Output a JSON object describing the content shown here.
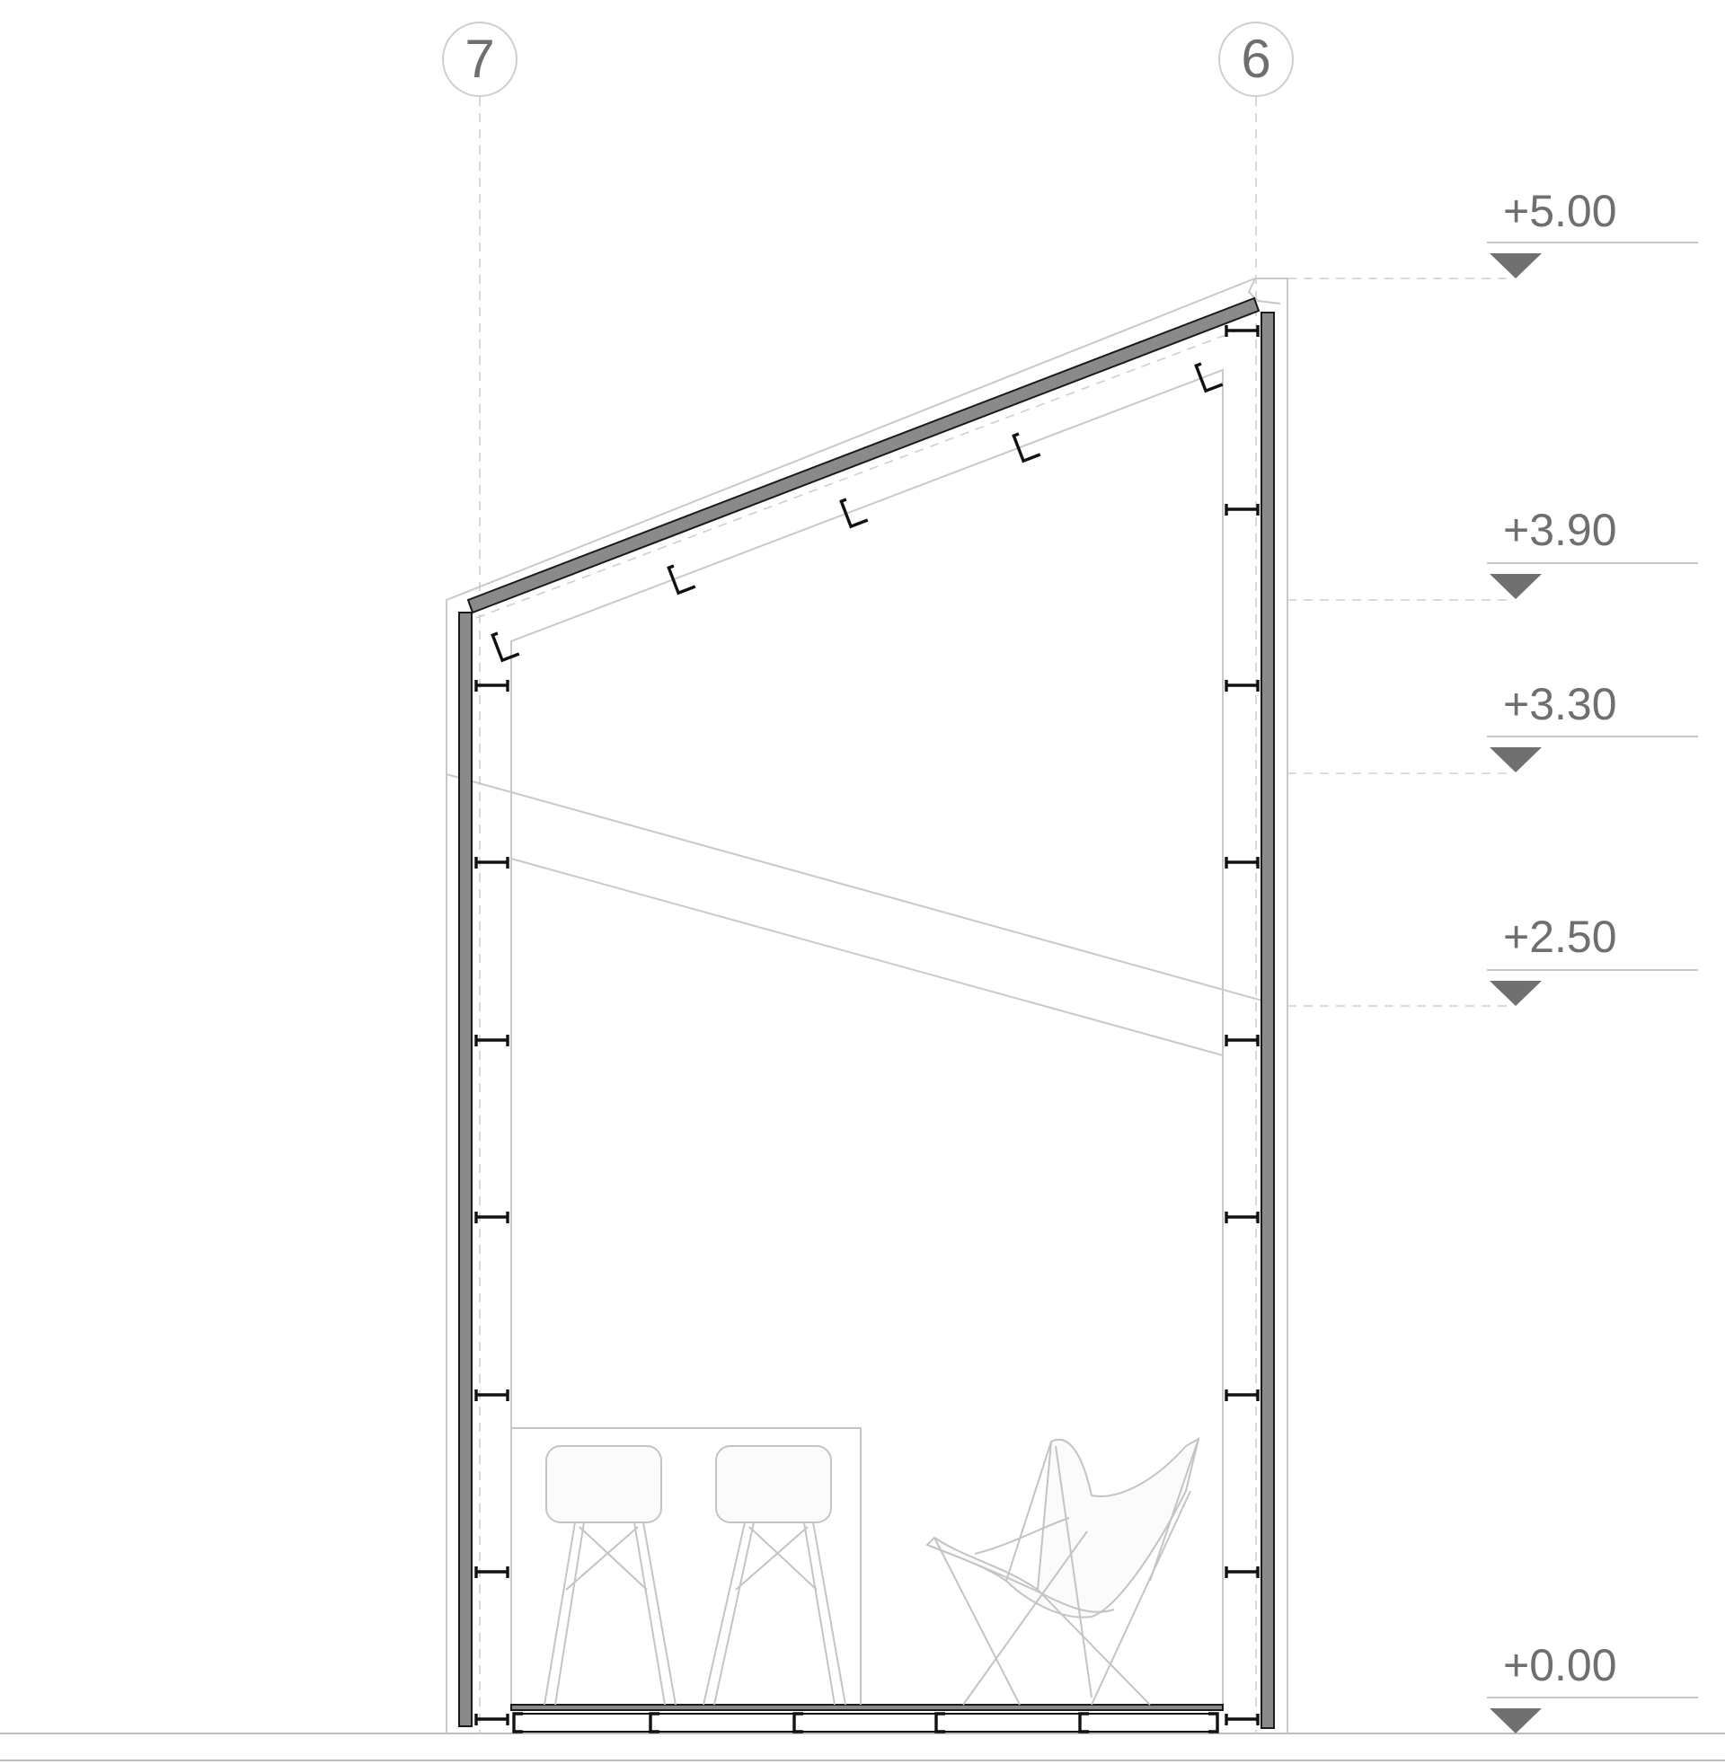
{
  "grid_axes": [
    {
      "id": "7"
    },
    {
      "id": "6"
    }
  ],
  "levels": [
    {
      "label": "+5.00"
    },
    {
      "label": "+3.90"
    },
    {
      "label": "+3.30"
    },
    {
      "label": "+2.50"
    },
    {
      "label": "+0.00"
    }
  ],
  "colors": {
    "wall_fill": "#8a8a8a",
    "steel_profile": "#111111",
    "thin_line": "#c9c9c9",
    "label_text": "#6f6f6f",
    "level_marker": "#707070"
  },
  "icons": {
    "level_marker": "triangle-down-icon",
    "grid_bubble": "circle-icon"
  }
}
